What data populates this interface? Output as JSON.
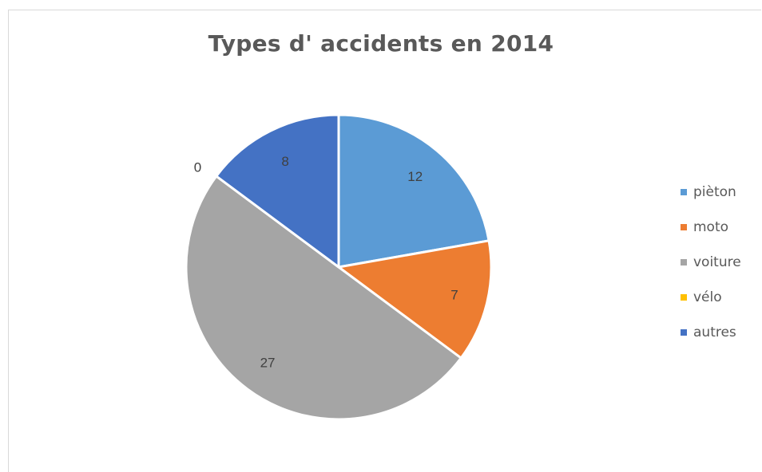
{
  "chart_data": {
    "type": "pie",
    "title": "Types d' accidents en 2014",
    "categories": [
      "pièton",
      "moto",
      "voiture",
      "vélo",
      "autres"
    ],
    "values": [
      12,
      7,
      27,
      0,
      8
    ],
    "colors": [
      "#5b9bd5",
      "#ed7d31",
      "#a5a5a5",
      "#ffc000",
      "#4472c4"
    ],
    "data_labels": [
      "12",
      "7",
      "27",
      "0",
      "8"
    ],
    "legend_position": "right",
    "start_angle_deg": 0,
    "direction": "clockwise"
  }
}
